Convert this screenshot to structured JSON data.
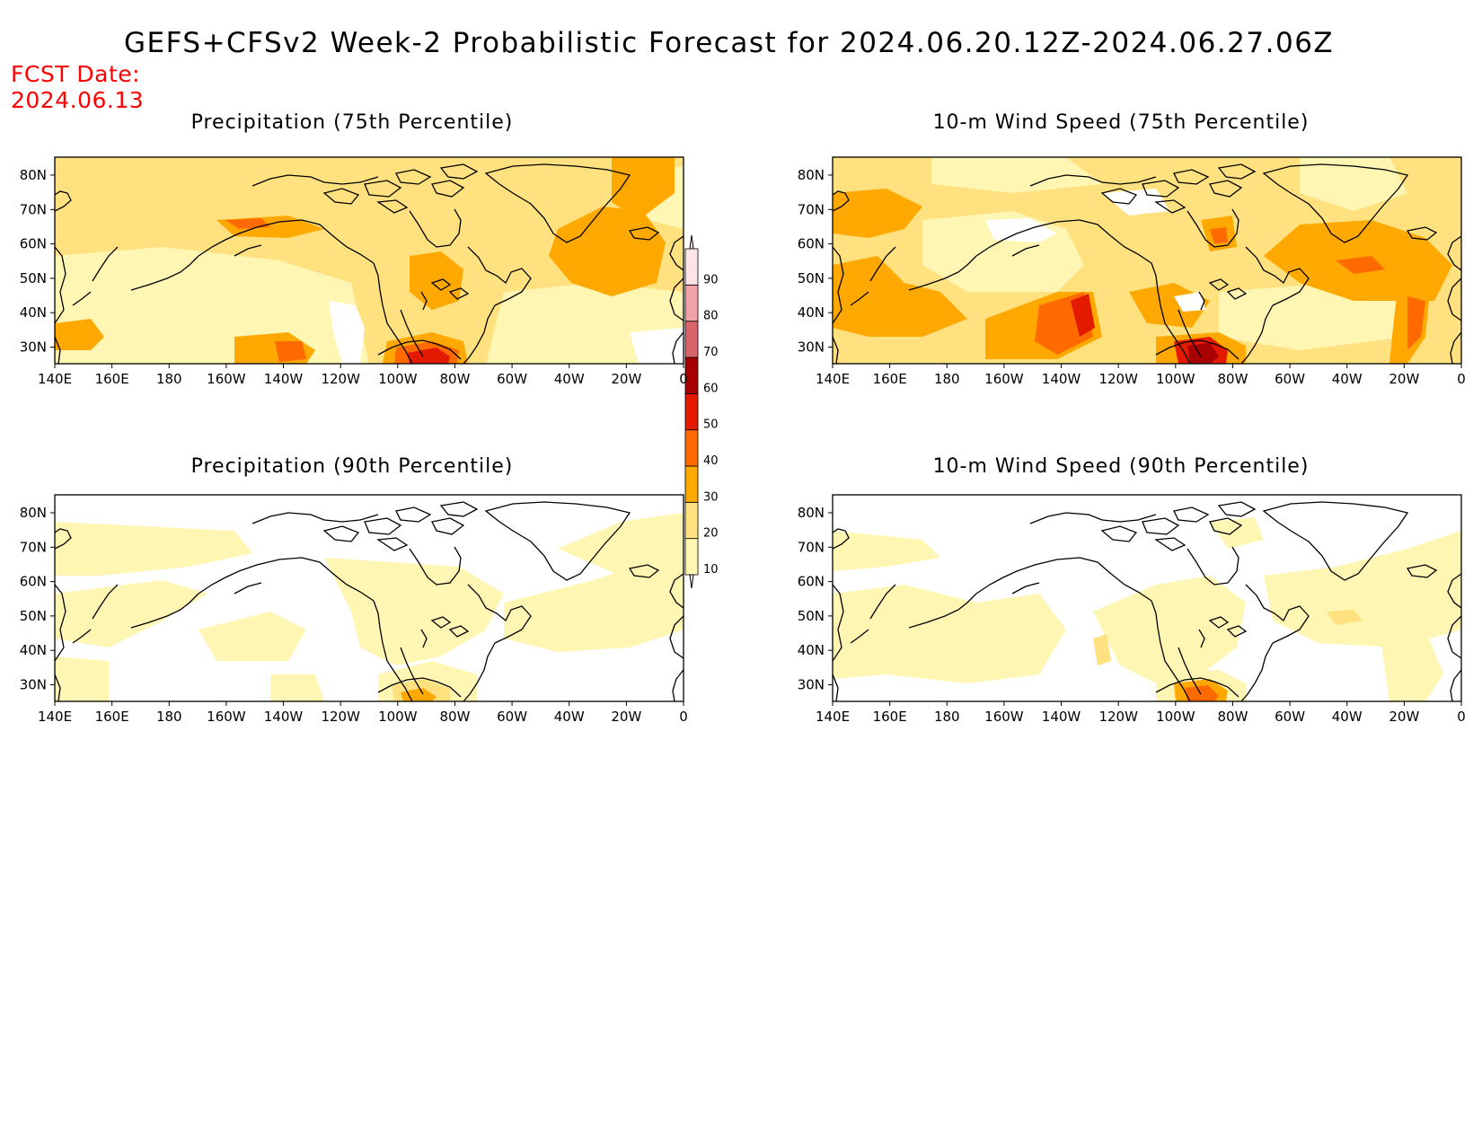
{
  "title": "GEFS+CFSv2 Week-2 Probabilistic Forecast for 2024.06.20.12Z-2024.06.27.06Z",
  "fcst_date_label": "FCST Date:",
  "fcst_date": "2024.06.13",
  "panels": [
    {
      "title": "Precipitation (75th Percentile)"
    },
    {
      "title": "10-m Wind Speed (75th Percentile)"
    },
    {
      "title": "Precipitation (90th Percentile)"
    },
    {
      "title": "10-m Wind Speed (90th Percentile)"
    }
  ],
  "axes": {
    "lon_labels": [
      "140E",
      "160E",
      "180",
      "160W",
      "140W",
      "120W",
      "100W",
      "80W",
      "60W",
      "40W",
      "20W",
      "0"
    ],
    "lat_labels": [
      "80N",
      "70N",
      "60N",
      "50N",
      "40N",
      "30N"
    ]
  },
  "colorbar": {
    "levels": [
      "10",
      "20",
      "30",
      "40",
      "50",
      "60",
      "70",
      "80",
      "90"
    ],
    "colors": [
      "#fff6b3",
      "#ffe17f",
      "#ffa800",
      "#ff6a00",
      "#e31a00",
      "#a80000",
      "#d9656c",
      "#f2a3a8",
      "#fde4e6"
    ]
  }
}
